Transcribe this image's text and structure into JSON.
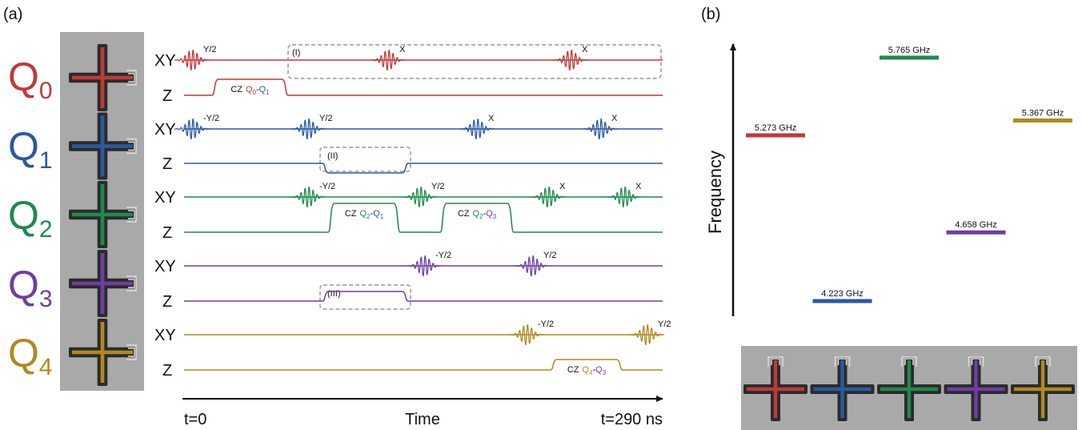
{
  "panel_a": {
    "label": "(a)",
    "qubits": [
      {
        "name": "Q",
        "sub": "0",
        "color": "#c0393b"
      },
      {
        "name": "Q",
        "sub": "1",
        "color": "#2a5aa0"
      },
      {
        "name": "Q",
        "sub": "2",
        "color": "#1f8a4c"
      },
      {
        "name": "Q",
        "sub": "3",
        "color": "#6e3fa2"
      },
      {
        "name": "Q",
        "sub": "4",
        "color": "#b08a1e"
      }
    ],
    "channels": [
      "XY",
      "Z"
    ],
    "sequences": [
      {
        "xy": [
          "Y/2",
          "X",
          "X"
        ],
        "gates": [
          {
            "op": "CZ",
            "q1": "Q",
            "s1": "0",
            "q2": "Q",
            "s2": "1"
          }
        ]
      },
      {
        "xy": [
          "-Y/2",
          "Y/2",
          "X",
          "X"
        ],
        "gates": []
      },
      {
        "xy": [
          "-Y/2",
          "Y/2",
          "X",
          "X"
        ],
        "gates": [
          {
            "op": "CZ",
            "q1": "Q",
            "s1": "2",
            "q2": "Q",
            "s2": "1"
          },
          {
            "op": "CZ",
            "q1": "Q",
            "s1": "2",
            "q2": "Q",
            "s2": "3"
          }
        ]
      },
      {
        "xy": [
          "-Y/2",
          "Y/2"
        ],
        "gates": []
      },
      {
        "xy": [
          "-Y/2",
          "Y/2"
        ],
        "gates": [
          {
            "op": "CZ",
            "q1": "Q",
            "s1": "4",
            "q2": "Q",
            "s2": "3"
          }
        ]
      }
    ],
    "boxes": [
      "(I)",
      "(II)",
      "(III)"
    ],
    "time_axis": {
      "start": "t=0",
      "label": "Time",
      "end": "t=290 ns"
    }
  },
  "panel_b": {
    "label": "(b)",
    "axis_label": "Frequency",
    "frequencies": [
      5.273,
      4.223,
      5.765,
      4.658,
      5.367
    ],
    "value_labels": [
      "5.273 GHz",
      "4.223 GHz",
      "5.765 GHz",
      "4.658 GHz",
      "5.367 GHz"
    ]
  }
}
